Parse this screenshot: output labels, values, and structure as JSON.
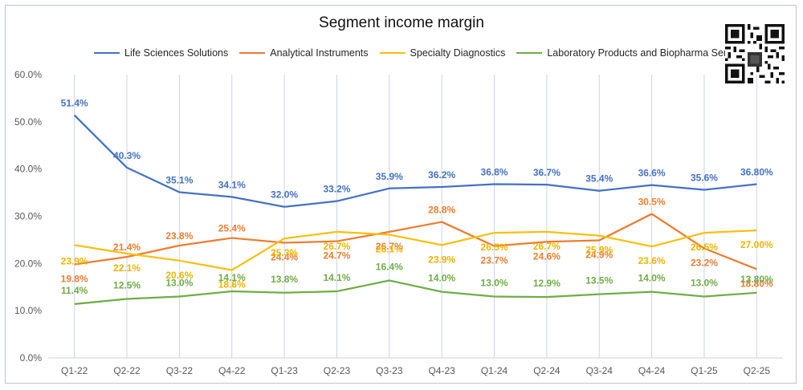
{
  "chart_data": {
    "type": "line",
    "title": "Segment income margin",
    "xlabel": "",
    "ylabel": "",
    "categories": [
      "Q1-22",
      "Q2-22",
      "Q3-22",
      "Q4-22",
      "Q1-23",
      "Q2-23",
      "Q3-23",
      "Q4-23",
      "Q1-24",
      "Q2-24",
      "Q3-24",
      "Q4-24",
      "Q1-25",
      "Q2-25"
    ],
    "ylim": [
      0,
      60
    ],
    "yticks": [
      "0.0%",
      "10.0%",
      "20.0%",
      "30.0%",
      "40.0%",
      "50.0%",
      "60.0%"
    ],
    "legend_position": "top",
    "grid": "vertical lines at each category",
    "series": [
      {
        "name": "Life Sciences Solutions",
        "color": "#4472c4",
        "values": [
          51.4,
          40.3,
          35.1,
          34.1,
          32.0,
          33.2,
          35.9,
          36.2,
          36.8,
          36.7,
          35.4,
          36.6,
          35.6,
          36.8
        ],
        "labels": [
          "51.4%",
          "40.3%",
          "35.1%",
          "34.1%",
          "32.0%",
          "33.2%",
          "35.9%",
          "36.2%",
          "36.8%",
          "36.7%",
          "35.4%",
          "36.6%",
          "35.6%",
          "36.80%"
        ]
      },
      {
        "name": "Analytical Instruments",
        "color": "#ed7d31",
        "values": [
          19.8,
          21.4,
          23.8,
          25.4,
          24.4,
          24.7,
          26.7,
          28.8,
          23.7,
          24.6,
          24.9,
          30.5,
          23.2,
          18.8
        ],
        "labels": [
          "19.8%",
          "21.4%",
          "23.8%",
          "25.4%",
          "24.4%",
          "24.7%",
          "26.7%",
          "28.8%",
          "23.7%",
          "24.6%",
          "24.9%",
          "30.5%",
          "23.2%",
          "18.80%"
        ]
      },
      {
        "name": "Specialty Diagnostics",
        "color": "#fbbf10",
        "values": [
          23.9,
          22.1,
          20.6,
          18.6,
          25.3,
          26.7,
          26.1,
          23.9,
          26.5,
          26.7,
          25.9,
          23.6,
          26.5,
          27.0
        ],
        "labels": [
          "23.9%",
          "22.1%",
          "20.6%",
          "18.6%",
          "25.3%",
          "26.7%",
          "26.1%",
          "23.9%",
          "26.5%",
          "26.7%",
          "25.9%",
          "23.6%",
          "26.5%",
          "27.00%"
        ]
      },
      {
        "name": "Laboratory Products and Biopharma Services",
        "color": "#70ad47",
        "values": [
          11.4,
          12.5,
          13.0,
          14.1,
          13.8,
          14.1,
          16.4,
          14.0,
          13.0,
          12.9,
          13.5,
          14.0,
          13.0,
          13.8
        ],
        "labels": [
          "11.4%",
          "12.5%",
          "13.0%",
          "14.1%",
          "13.8%",
          "14.1%",
          "16.4%",
          "14.0%",
          "13.0%",
          "12.9%",
          "13.5%",
          "14.0%",
          "13.0%",
          "13.80%"
        ]
      }
    ]
  }
}
